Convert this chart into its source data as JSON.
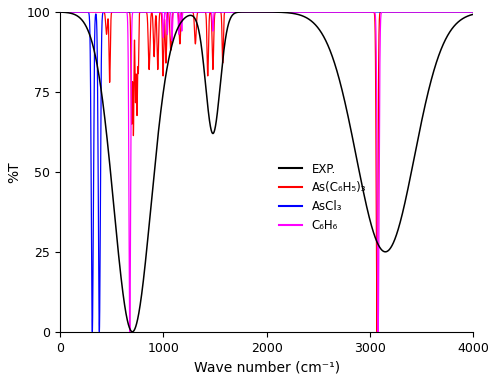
{
  "title": "",
  "xlabel": "Wave number (cm⁻¹)",
  "ylabel": "%T",
  "xlim": [
    0,
    4000
  ],
  "ylim": [
    0,
    100
  ],
  "xticks": [
    0,
    1000,
    2000,
    3000,
    4000
  ],
  "yticks": [
    0,
    25,
    50,
    75,
    100
  ],
  "legend": [
    "EXP.",
    "As(C₆H₅)₃",
    "AsCl₃",
    "C₆H₆"
  ],
  "colors": {
    "exp": "#000000",
    "as_phenyl": "#ff0000",
    "ascl3": "#0000ff",
    "benzene": "#ff00ff"
  }
}
